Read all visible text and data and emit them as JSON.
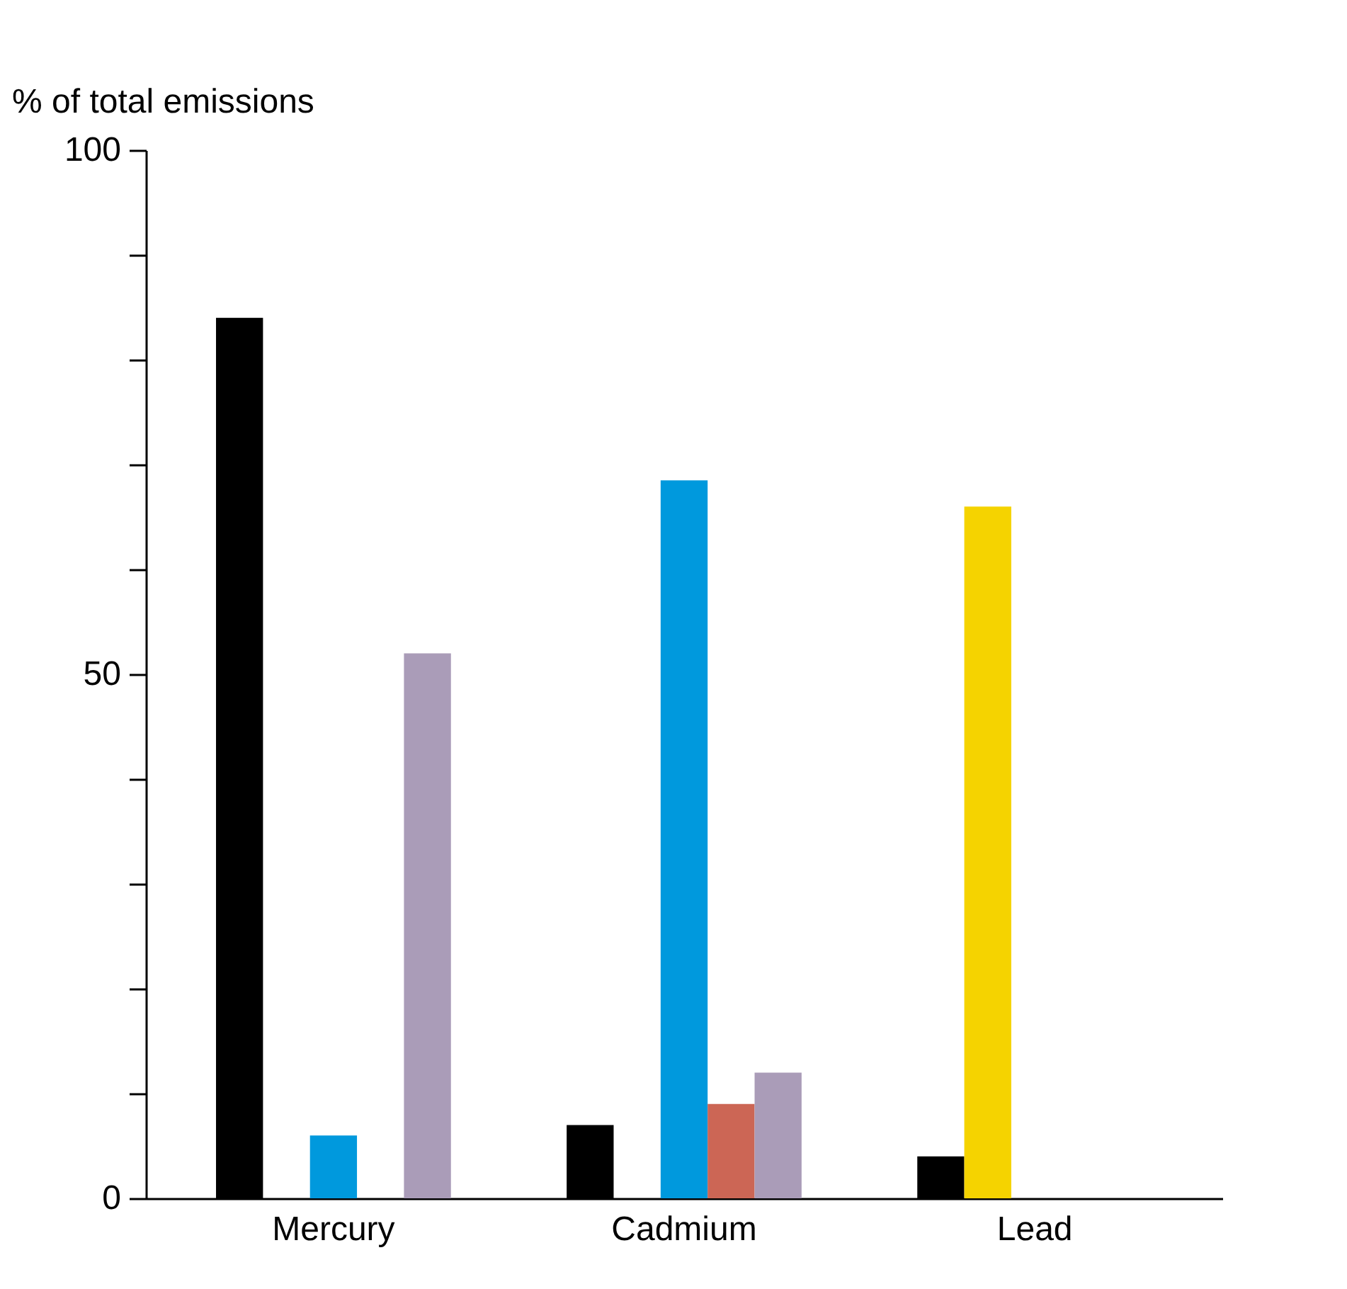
{
  "chart_data": {
    "type": "bar",
    "ylabel": "% of total emissions",
    "categories": [
      "Mercury",
      "Cadmium",
      "Lead"
    ],
    "series": [
      {
        "color": "#000000",
        "values": [
          84,
          7,
          4
        ]
      },
      {
        "color": "#f5d300",
        "values": [
          null,
          null,
          66
        ]
      },
      {
        "color": "#0099dd",
        "values": [
          6,
          68.5,
          null
        ]
      },
      {
        "color": "#cc6655",
        "values": [
          null,
          9,
          null
        ]
      },
      {
        "color": "#aa9cb8",
        "values": [
          52,
          12,
          null
        ]
      }
    ],
    "ylim": [
      0,
      100
    ],
    "yticks": [
      0,
      {
        "value": 10,
        "label": null
      },
      {
        "value": 20,
        "label": null
      },
      {
        "value": 30,
        "label": null
      },
      {
        "value": 40,
        "label": null
      },
      50,
      {
        "value": 60,
        "label": null
      },
      {
        "value": 70,
        "label": null
      },
      {
        "value": 80,
        "label": null
      },
      {
        "value": 90,
        "label": null
      },
      100
    ],
    "grid": false,
    "legend": false
  }
}
